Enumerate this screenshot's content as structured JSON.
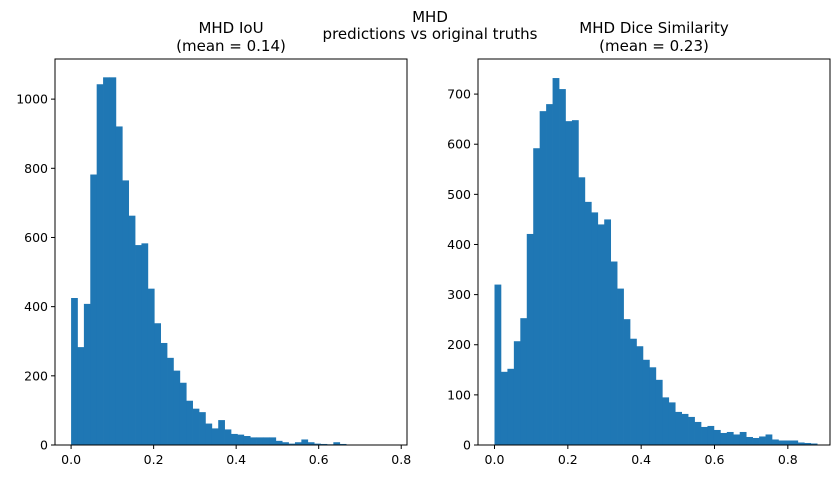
{
  "suptitle": [
    "MHD",
    "predictions vs original truths"
  ],
  "colors": {
    "bar": "#1f77b4",
    "axis": "#000000",
    "background": "#ffffff"
  },
  "chart_data": [
    {
      "type": "bar",
      "title": [
        "MHD IoU",
        "(mean = 0.14)"
      ],
      "xlabel": "",
      "ylabel": "",
      "bin_width": 0.0155,
      "bins_start": [
        0.0,
        0.0155,
        0.031,
        0.0465,
        0.062,
        0.0775,
        0.093,
        0.1085,
        0.124,
        0.1395,
        0.155,
        0.1705,
        0.186,
        0.2015,
        0.217,
        0.2325,
        0.248,
        0.2635,
        0.279,
        0.2945,
        0.31,
        0.3255,
        0.341,
        0.3565,
        0.372,
        0.3875,
        0.403,
        0.4185,
        0.434,
        0.4495,
        0.465,
        0.4805,
        0.496,
        0.5115,
        0.527,
        0.5425,
        0.558,
        0.5735,
        0.589,
        0.6045,
        0.62,
        0.6355,
        0.651,
        0.6665,
        0.682,
        0.6975,
        0.713,
        0.7285,
        0.744,
        0.7595
      ],
      "values": [
        425,
        283,
        408,
        782,
        1043,
        1063,
        1063,
        921,
        765,
        663,
        578,
        583,
        452,
        352,
        295,
        252,
        215,
        180,
        128,
        105,
        95,
        62,
        48,
        72,
        45,
        32,
        30,
        26,
        22,
        22,
        22,
        22,
        12,
        8,
        4,
        8,
        16,
        8,
        4,
        3,
        2,
        8,
        3,
        1,
        1,
        1,
        1,
        1,
        1,
        0
      ],
      "xticks": [
        "0.0",
        "0.2",
        "0.4",
        "0.6",
        "0.8"
      ],
      "xtick_values": [
        0,
        0.2,
        0.4,
        0.6,
        0.8
      ],
      "yticks": [
        "0",
        "200",
        "400",
        "600",
        "800",
        "1000"
      ],
      "ytick_values": [
        0,
        200,
        400,
        600,
        800,
        1000
      ],
      "xlim": [
        -0.039,
        0.814
      ],
      "ylim": [
        0,
        1116
      ],
      "grid": false
    },
    {
      "type": "bar",
      "title": [
        "MHD Dice Similarity",
        "(mean = 0.23)"
      ],
      "xlabel": "",
      "ylabel": "",
      "bin_width": 0.0176,
      "bins_start": [
        0.0,
        0.0176,
        0.0352,
        0.0528,
        0.0704,
        0.088,
        0.1056,
        0.1232,
        0.1408,
        0.1584,
        0.176,
        0.1936,
        0.2112,
        0.2288,
        0.2464,
        0.264,
        0.2816,
        0.2992,
        0.3168,
        0.3344,
        0.352,
        0.3696,
        0.3872,
        0.4048,
        0.4224,
        0.44,
        0.4576,
        0.4752,
        0.4928,
        0.5104,
        0.528,
        0.5456,
        0.5632,
        0.5808,
        0.5984,
        0.616,
        0.6336,
        0.6512,
        0.6688,
        0.6864,
        0.704,
        0.7216,
        0.7392,
        0.7568,
        0.7744,
        0.792,
        0.8096,
        0.8272,
        0.8448,
        0.8624
      ],
      "values": [
        320,
        146,
        152,
        207,
        253,
        421,
        592,
        666,
        680,
        732,
        710,
        646,
        648,
        534,
        485,
        464,
        440,
        450,
        366,
        312,
        251,
        212,
        197,
        170,
        155,
        130,
        95,
        85,
        66,
        62,
        56,
        46,
        36,
        38,
        30,
        24,
        26,
        21,
        26,
        16,
        14,
        17,
        21,
        11,
        9,
        9,
        9,
        5,
        4,
        3
      ],
      "xticks": [
        "0.0",
        "0.2",
        "0.4",
        "0.6",
        "0.8"
      ],
      "xtick_values": [
        0,
        0.2,
        0.4,
        0.6,
        0.8
      ],
      "yticks": [
        "0",
        "100",
        "200",
        "300",
        "400",
        "500",
        "600",
        "700"
      ],
      "ytick_values": [
        0,
        100,
        200,
        300,
        400,
        500,
        600,
        700
      ],
      "xlim": [
        -0.045,
        0.915
      ],
      "ylim": [
        0,
        770
      ],
      "grid": false
    }
  ]
}
